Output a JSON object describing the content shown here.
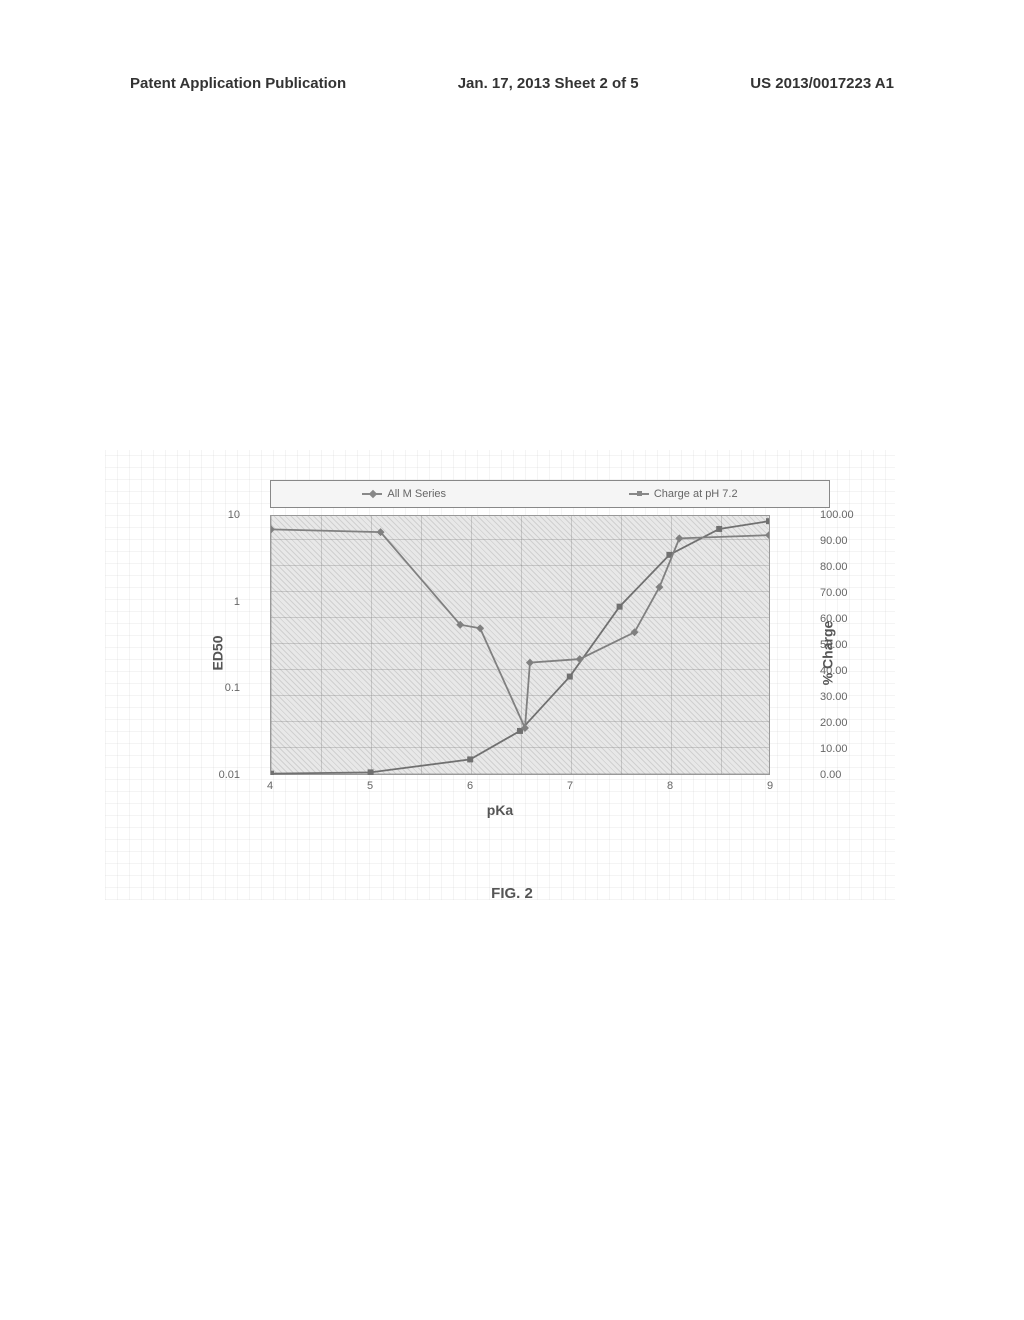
{
  "header": {
    "left": "Patent Application Publication",
    "center": "Jan. 17, 2013  Sheet 2 of 5",
    "right": "US 2013/0017223 A1"
  },
  "chart": {
    "type": "line",
    "legend": {
      "series1": "All M Series",
      "series2": "Charge at pH 7.2"
    },
    "axes": {
      "x_label": "pKa",
      "y_left_label": "ED50",
      "y_right_label": "% Charge",
      "x_ticks": [
        "4",
        "5",
        "6",
        "7",
        "8",
        "9"
      ],
      "y_left_ticks": [
        "10",
        "1",
        "0.1",
        "0.01"
      ],
      "y_right_ticks": [
        "100.00",
        "90.00",
        "80.00",
        "70.00",
        "60.00",
        "50.00",
        "40.00",
        "30.00",
        "20.00",
        "10.00",
        "0.00"
      ]
    },
    "series_ed50": [
      {
        "x": 4.0,
        "y": 7.0
      },
      {
        "x": 5.1,
        "y": 6.5
      },
      {
        "x": 5.9,
        "y": 0.55
      },
      {
        "x": 6.1,
        "y": 0.5
      },
      {
        "x": 6.55,
        "y": 0.035
      },
      {
        "x": 6.6,
        "y": 0.2
      },
      {
        "x": 7.1,
        "y": 0.22
      },
      {
        "x": 7.65,
        "y": 0.45
      },
      {
        "x": 7.9,
        "y": 1.5
      },
      {
        "x": 8.1,
        "y": 5.5
      },
      {
        "x": 9.0,
        "y": 6.0
      }
    ],
    "series_charge": [
      {
        "x": 4.0,
        "y": 0.5
      },
      {
        "x": 5.0,
        "y": 1.0
      },
      {
        "x": 6.0,
        "y": 6.0
      },
      {
        "x": 6.5,
        "y": 17.0
      },
      {
        "x": 7.0,
        "y": 38.0
      },
      {
        "x": 7.5,
        "y": 65.0
      },
      {
        "x": 8.0,
        "y": 85.0
      },
      {
        "x": 8.5,
        "y": 95.0
      },
      {
        "x": 9.0,
        "y": 98.0
      }
    ],
    "colors": {
      "plot_bg_pattern": "#d8d8d8",
      "grid": "#999999",
      "line_ed50": "#808080",
      "line_charge": "#707070",
      "marker_ed50": "#606060",
      "marker_charge": "#606060"
    }
  },
  "caption": "FIG. 2"
}
